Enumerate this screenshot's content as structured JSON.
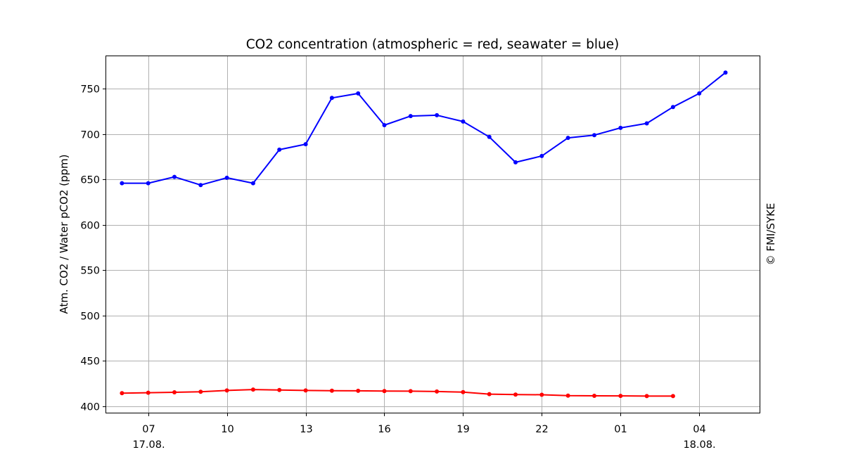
{
  "chart_data": {
    "type": "line",
    "title": "CO2 concentration (atmospheric = red, seawater = blue)",
    "xlabel": "",
    "ylabel": "Atm. CO2 / Water pCO2 (ppm)",
    "copyright": "© FMI/SYKE",
    "x_unit": "hour",
    "x_start_label": "06",
    "x_ticks": [
      {
        "hour": 7,
        "label": "07",
        "sublabel": "17.08."
      },
      {
        "hour": 10,
        "label": "10",
        "sublabel": ""
      },
      {
        "hour": 13,
        "label": "13",
        "sublabel": ""
      },
      {
        "hour": 16,
        "label": "16",
        "sublabel": ""
      },
      {
        "hour": 19,
        "label": "19",
        "sublabel": ""
      },
      {
        "hour": 22,
        "label": "22",
        "sublabel": ""
      },
      {
        "hour": 25,
        "label": "01",
        "sublabel": ""
      },
      {
        "hour": 28,
        "label": "04",
        "sublabel": "18.08."
      }
    ],
    "xlim": [
      5.4,
      30.3
    ],
    "ylim": [
      393,
      786
    ],
    "y_ticks": [
      400,
      450,
      500,
      550,
      600,
      650,
      700,
      750
    ],
    "grid": true,
    "series": [
      {
        "name": "seawater",
        "color": "#0000ff",
        "x": [
          6,
          7,
          8,
          9,
          10,
          11,
          12,
          13,
          14,
          15,
          16,
          17,
          18,
          19,
          20,
          21,
          22,
          23,
          24,
          25,
          26,
          27,
          28,
          29
        ],
        "values": [
          646,
          646,
          653,
          644,
          652,
          646,
          683,
          689,
          740,
          745,
          710,
          720,
          721,
          714,
          697,
          669,
          676,
          696,
          699,
          707,
          712,
          730,
          745,
          768
        ]
      },
      {
        "name": "atmospheric",
        "color": "#ff0000",
        "x": [
          6,
          7,
          8,
          9,
          10,
          11,
          12,
          13,
          14,
          15,
          16,
          17,
          18,
          19,
          20,
          21,
          22,
          23,
          24,
          25,
          26,
          27
        ],
        "values": [
          414.5,
          415,
          415.5,
          416,
          417.5,
          418.5,
          418,
          417.5,
          417.3,
          417.1,
          416.9,
          416.7,
          416.3,
          415.7,
          413.5,
          413,
          412.8,
          411.8,
          411.6,
          411.5,
          411.3,
          411.3
        ]
      }
    ]
  }
}
